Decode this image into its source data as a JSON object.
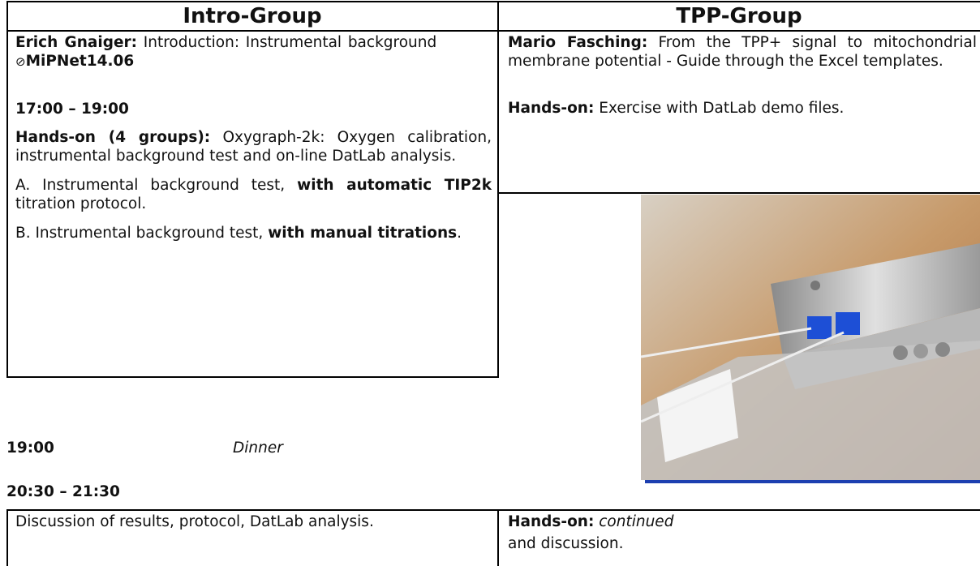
{
  "header": {
    "columns": [
      "Intro-Group",
      "TPP-Group"
    ]
  },
  "intro": {
    "talk": {
      "speaker": "Erich Gnaiger:",
      "title": "Introduction: Instrumental background",
      "link": "MiPNet14.06"
    },
    "time": "17:00 – 19:00",
    "handson": {
      "label": "Hands-on (4 groups):",
      "text": "Oxygraph-2k: Oxygen calibration, instrumental background test and on-line DatLab analysis."
    },
    "options": [
      {
        "text": "A. Instrumental background test,",
        "bold": "with automatic TIP2k",
        "rest": "titration protocol."
      },
      {
        "text": "B. Instrumental background test,",
        "bold": "with manual titrations",
        "rest": "."
      }
    ]
  },
  "tpp": {
    "talk": {
      "speaker": "Mario Fasching:",
      "title": "From the TPP+ signal to mitochondrial membrane potential - Guide through the Excel templates."
    },
    "handson": {
      "label": "Hands-on:",
      "text": "Exercise with DatLab demo files."
    }
  },
  "schedule": [
    {
      "time": "19:00",
      "event": "Dinner"
    },
    {
      "time": "20:30 – 21:30"
    }
  ],
  "bottom": {
    "left": "Discussion of results, protocol, DatLab analysis.",
    "right": {
      "label": "Hands-on:",
      "italic": "continued",
      "rest": "and discussion."
    }
  }
}
